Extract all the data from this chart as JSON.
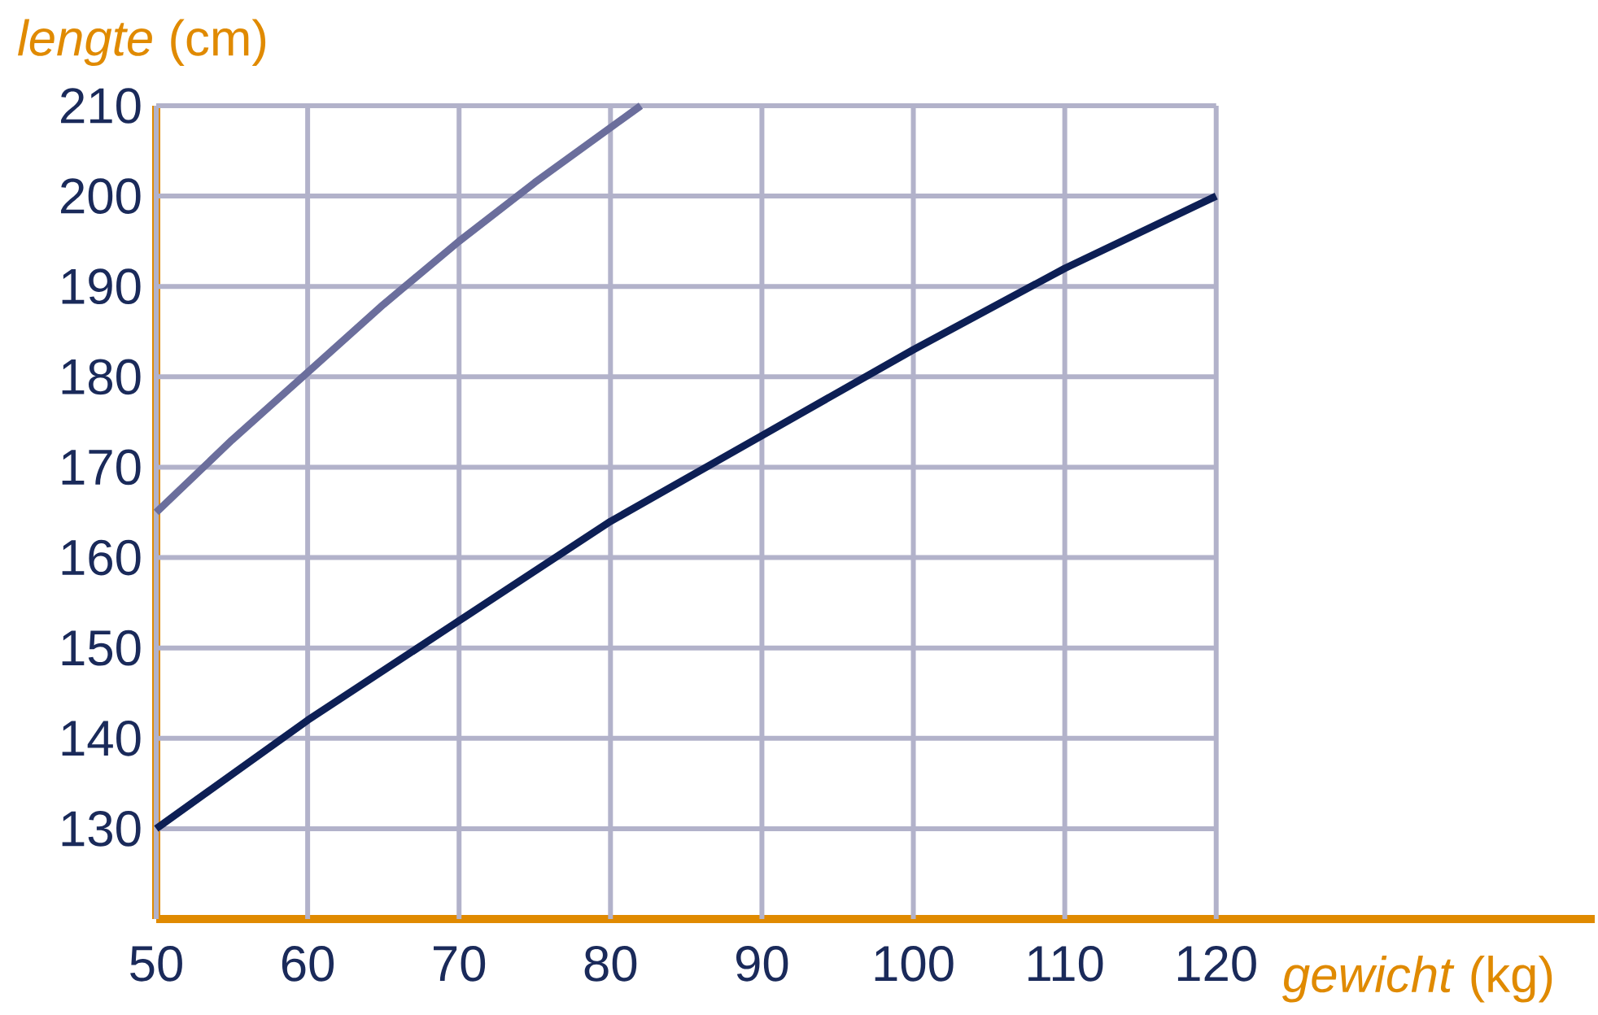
{
  "chart_data": {
    "type": "line",
    "xlabel": "*gewicht* (kg)",
    "ylabel": "*lengte* (cm)",
    "series": [
      {
        "color": "#6b6e9c",
        "x": [
          50,
          55,
          60,
          65,
          70,
          75,
          82
        ],
        "values": [
          165,
          173,
          180.5,
          188,
          195,
          201.5,
          210
        ]
      },
      {
        "color": "#0d1f55",
        "x": [
          50,
          60,
          70,
          80,
          90,
          100,
          110,
          120
        ],
        "values": [
          130,
          142,
          153,
          164,
          173.5,
          183,
          192,
          200
        ]
      }
    ],
    "xlim": [
      50,
      145
    ],
    "ylim": [
      120,
      210
    ],
    "xticks": [
      50,
      60,
      70,
      80,
      90,
      100,
      110,
      120
    ],
    "yticks": [
      130,
      140,
      150,
      160,
      170,
      180,
      190,
      200,
      210
    ],
    "grid": true,
    "marker": "none",
    "line_style": "solid"
  }
}
